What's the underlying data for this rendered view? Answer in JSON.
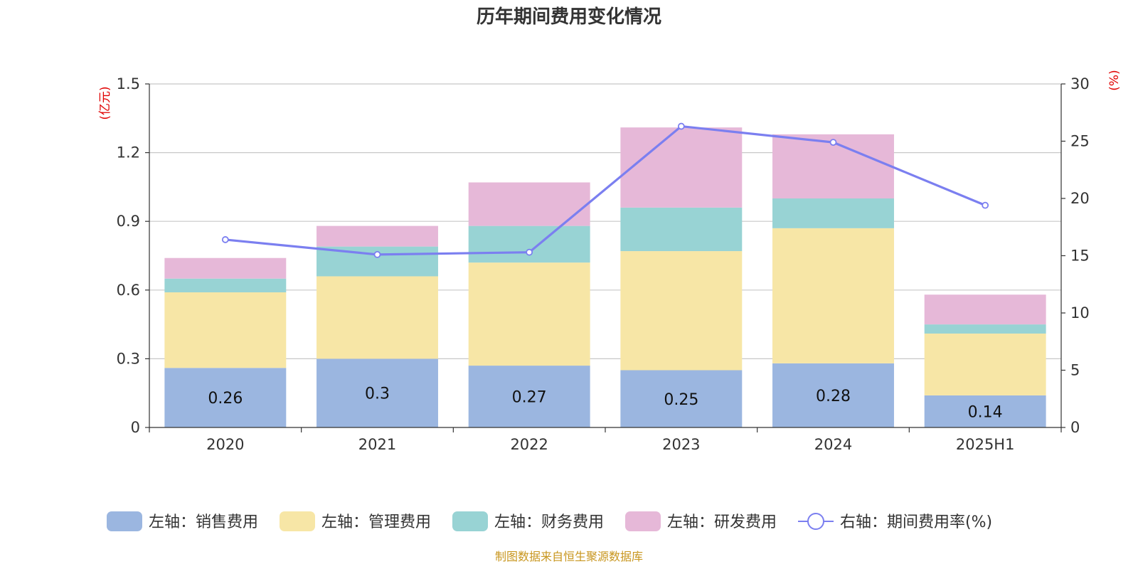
{
  "chart_data": {
    "type": "bar",
    "title": "历年期间费用变化情况",
    "categories": [
      "2020",
      "2021",
      "2022",
      "2023",
      "2024",
      "2025H1"
    ],
    "y_left": {
      "unit": "(亿元)",
      "range": [
        0,
        1.5
      ],
      "ticks": [
        "0",
        "0.3",
        "0.6",
        "0.9",
        "1.2",
        "1.5"
      ]
    },
    "y_right": {
      "unit": "(%)",
      "range": [
        0,
        30
      ],
      "ticks": [
        "0",
        "5",
        "10",
        "15",
        "20",
        "25",
        "30"
      ]
    },
    "stacked_series": [
      {
        "name": "左轴：销售费用",
        "color": "#9bb6e0",
        "values": [
          0.26,
          0.3,
          0.27,
          0.25,
          0.28,
          0.14
        ]
      },
      {
        "name": "左轴：管理费用",
        "color": "#f7e6a6",
        "values": [
          0.33,
          0.36,
          0.45,
          0.52,
          0.59,
          0.27
        ]
      },
      {
        "name": "左轴：财务费用",
        "color": "#98d3d4",
        "values": [
          0.06,
          0.13,
          0.16,
          0.19,
          0.13,
          0.04
        ]
      },
      {
        "name": "左轴：研发费用",
        "color": "#e6b8d8",
        "values": [
          0.09,
          0.09,
          0.19,
          0.35,
          0.28,
          0.13
        ]
      }
    ],
    "data_labels": [
      "0.26",
      "0.3",
      "0.27",
      "0.25",
      "0.28",
      "0.14"
    ],
    "line_series": {
      "name": "右轴：期间费用率(%)",
      "color": "#7b7ff0",
      "axis": "right",
      "values": [
        16.4,
        15.1,
        15.3,
        26.3,
        24.9,
        19.4
      ]
    },
    "grid": true,
    "legend_position": "bottom"
  },
  "source_note": "制图数据来自恒生聚源数据库"
}
